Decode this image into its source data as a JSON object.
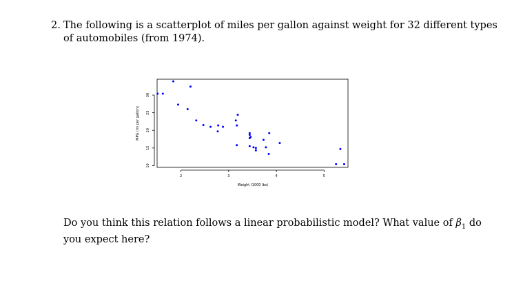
{
  "question": {
    "number": "2.",
    "line1": "The following is a scatterplot of miles per gallon against weight for 32 different types",
    "line2": "of automobiles (from 1974)."
  },
  "chart_data": {
    "type": "scatter",
    "xlabel": "Weight (1000 lbs)",
    "ylabel": "MPG (mi per gallon)",
    "xticks": [
      "2",
      "3",
      "4",
      "5"
    ],
    "yticks": [
      "10",
      "15",
      "20",
      "25",
      "30"
    ],
    "xlim": [
      1.5,
      5.5
    ],
    "ylim": [
      9.5,
      34.5
    ],
    "grid": false,
    "point_color": "#0000ff",
    "points": [
      {
        "x": 1.51,
        "y": 30.4
      },
      {
        "x": 1.62,
        "y": 30.4
      },
      {
        "x": 1.84,
        "y": 33.9
      },
      {
        "x": 1.94,
        "y": 27.3
      },
      {
        "x": 2.14,
        "y": 26.0
      },
      {
        "x": 2.2,
        "y": 32.4
      },
      {
        "x": 2.32,
        "y": 22.8
      },
      {
        "x": 2.47,
        "y": 21.5
      },
      {
        "x": 2.62,
        "y": 21.0
      },
      {
        "x": 2.78,
        "y": 21.4
      },
      {
        "x": 2.77,
        "y": 19.7
      },
      {
        "x": 2.88,
        "y": 21.0
      },
      {
        "x": 3.15,
        "y": 22.8
      },
      {
        "x": 3.19,
        "y": 24.4
      },
      {
        "x": 3.17,
        "y": 21.4
      },
      {
        "x": 3.17,
        "y": 15.8
      },
      {
        "x": 3.44,
        "y": 19.2
      },
      {
        "x": 3.44,
        "y": 18.7
      },
      {
        "x": 3.46,
        "y": 18.1
      },
      {
        "x": 3.44,
        "y": 17.8
      },
      {
        "x": 3.52,
        "y": 15.2
      },
      {
        "x": 3.57,
        "y": 14.3
      },
      {
        "x": 3.57,
        "y": 15.0
      },
      {
        "x": 3.73,
        "y": 17.3
      },
      {
        "x": 3.78,
        "y": 15.2
      },
      {
        "x": 3.84,
        "y": 13.3
      },
      {
        "x": 3.85,
        "y": 19.2
      },
      {
        "x": 3.44,
        "y": 15.5
      },
      {
        "x": 4.07,
        "y": 16.4
      },
      {
        "x": 5.25,
        "y": 10.4
      },
      {
        "x": 5.34,
        "y": 14.7
      },
      {
        "x": 5.42,
        "y": 10.4
      }
    ]
  },
  "prompt": {
    "line1_before": "Do you think this relation follows a linear probabilistic model? What value of ",
    "beta_symbol": "β",
    "beta_sub": "1",
    "line1_after": " do",
    "line2": "you expect here?"
  }
}
